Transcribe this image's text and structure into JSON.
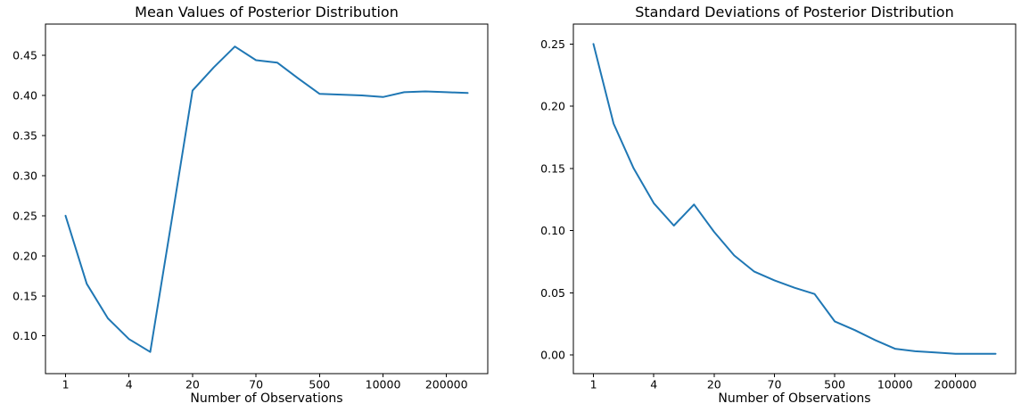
{
  "figure": {
    "background": "#ffffff",
    "text_color": "#000000",
    "spine_color": "#000000"
  },
  "chart_data": [
    {
      "type": "line",
      "title": "Mean Values of Posterior Distribution",
      "xlabel": "Number of Observations",
      "x_tick_labels": [
        "1",
        "4",
        "20",
        "70",
        "500",
        "10000",
        "200000"
      ],
      "x_tick_indices": [
        0,
        3,
        6,
        9,
        12,
        15,
        18
      ],
      "y_tick_labels": [
        "0.10",
        "0.15",
        "0.20",
        "0.25",
        "0.30",
        "0.35",
        "0.40",
        "0.45"
      ],
      "y_tick_values": [
        0.1,
        0.15,
        0.2,
        0.25,
        0.3,
        0.35,
        0.4,
        0.45
      ],
      "values": [
        0.25,
        0.165,
        0.122,
        0.096,
        0.08,
        0.242,
        0.406,
        0.435,
        0.461,
        0.444,
        0.441,
        0.421,
        0.402,
        0.401,
        0.4,
        0.398,
        0.404,
        0.405,
        0.404,
        0.403
      ],
      "ylim": [
        0.053,
        0.489
      ],
      "xlim_index": [
        -0.95,
        19.95
      ],
      "line_color": "#1f77b4",
      "grid": false,
      "legend": null
    },
    {
      "type": "line",
      "title": "Standard Deviations of Posterior Distribution",
      "xlabel": "Number of Observations",
      "x_tick_labels": [
        "1",
        "4",
        "20",
        "70",
        "500",
        "10000",
        "200000"
      ],
      "x_tick_indices": [
        0,
        3,
        6,
        9,
        12,
        15,
        18
      ],
      "y_tick_labels": [
        "0.00",
        "0.05",
        "0.10",
        "0.15",
        "0.20",
        "0.25"
      ],
      "y_tick_values": [
        0.0,
        0.05,
        0.1,
        0.15,
        0.2,
        0.25
      ],
      "values": [
        0.25,
        0.186,
        0.15,
        0.122,
        0.104,
        0.121,
        0.099,
        0.08,
        0.067,
        0.06,
        0.054,
        0.049,
        0.027,
        0.02,
        0.012,
        0.005,
        0.003,
        0.002,
        0.001,
        0.001,
        0.001
      ],
      "ylim": [
        -0.015,
        0.266
      ],
      "xlim_index": [
        -1.0,
        21.0
      ],
      "line_color": "#1f77b4",
      "grid": false,
      "legend": null
    }
  ]
}
